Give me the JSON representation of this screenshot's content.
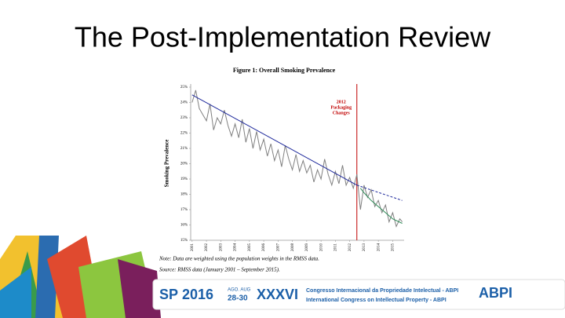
{
  "slide": {
    "title": "The Post-Implementation Review"
  },
  "chart_data": {
    "type": "line",
    "title": "Figure 1: Overall Smoking Prevalence",
    "y_label": "Smoking Prevalence",
    "xlim": [
      2000.9,
      2015.8
    ],
    "xticks": [
      2001,
      2002,
      2003,
      2004,
      2005,
      2006,
      2007,
      2008,
      2009,
      2010,
      2011,
      2012,
      2013,
      2014,
      2015
    ],
    "ylim": [
      15,
      25
    ],
    "yticks": [
      {
        "value": 15,
        "label": "15%"
      },
      {
        "value": 16,
        "label": "16%"
      },
      {
        "value": 17,
        "label": "17%"
      },
      {
        "value": 18,
        "label": "18%"
      },
      {
        "value": 19,
        "label": "19%"
      },
      {
        "value": 20,
        "label": "20%"
      },
      {
        "value": 21,
        "label": "21%"
      },
      {
        "value": 22,
        "label": "22%"
      },
      {
        "value": 23,
        "label": "23%"
      },
      {
        "value": 24,
        "label": "24%"
      },
      {
        "value": 25,
        "label": "25%"
      }
    ],
    "series": [
      {
        "color": "#808080",
        "style": "solid",
        "x": [
          2001.0,
          2001.25,
          2001.5,
          2001.75,
          2002.0,
          2002.25,
          2002.5,
          2002.75,
          2003.0,
          2003.25,
          2003.5,
          2003.75,
          2004.0,
          2004.25,
          2004.5,
          2004.75,
          2005.0,
          2005.25,
          2005.5,
          2005.75,
          2006.0,
          2006.25,
          2006.5,
          2006.75,
          2007.0,
          2007.25,
          2007.5,
          2007.75,
          2008.0,
          2008.25,
          2008.5,
          2008.75,
          2009.0,
          2009.25,
          2009.5,
          2009.75,
          2010.0,
          2010.25,
          2010.5,
          2010.75,
          2011.0,
          2011.25,
          2011.5,
          2011.75,
          2012.0,
          2012.25,
          2012.5,
          2012.75,
          2013.0,
          2013.25,
          2013.5,
          2013.75,
          2014.0,
          2014.25,
          2014.5,
          2014.75,
          2015.0,
          2015.25,
          2015.5,
          2015.67
        ],
        "values": [
          24.0,
          24.8,
          23.6,
          23.2,
          22.8,
          23.9,
          22.2,
          23.0,
          22.6,
          23.5,
          22.5,
          21.8,
          22.6,
          21.7,
          22.9,
          21.4,
          22.3,
          21.0,
          22.1,
          20.9,
          21.6,
          20.5,
          21.3,
          20.2,
          20.9,
          19.8,
          21.2,
          20.3,
          19.6,
          20.6,
          19.5,
          20.2,
          19.4,
          19.9,
          18.8,
          19.6,
          19.0,
          20.3,
          19.3,
          18.6,
          19.5,
          18.7,
          19.9,
          18.6,
          19.1,
          18.4,
          19.3,
          17.0,
          18.6,
          17.8,
          18.3,
          17.2,
          17.6,
          16.8,
          17.3,
          16.2,
          16.8,
          15.9,
          16.4,
          16.2
        ]
      },
      {
        "color": "#1f2a9c",
        "style": "solid",
        "x": [
          2001.0,
          2012.5
        ],
        "values": [
          24.5,
          18.6
        ]
      },
      {
        "color": "#1f2a9c",
        "style": "dashed",
        "x": [
          2012.5,
          2015.67
        ],
        "values": [
          18.6,
          17.6
        ]
      },
      {
        "color": "#2e8b57",
        "style": "solid",
        "x": [
          2012.75,
          2013.0,
          2013.5,
          2014.0,
          2014.5,
          2015.0,
          2015.67
        ],
        "values": [
          18.4,
          18.1,
          17.6,
          17.2,
          16.8,
          16.4,
          16.1
        ]
      }
    ],
    "annotation": {
      "lines": [
        "2012",
        "Packaging",
        "Changes"
      ],
      "x": 2012.5,
      "color": "#c00000"
    },
    "notes": [
      "Note: Data are weighted using the population weights in the RMSS data.",
      "Source: RMSS data (January 2001 – September 2015)."
    ]
  },
  "footer": {
    "city": "SP",
    "year": "2016",
    "dates_top": "AGO. AUG",
    "dates": "28-30",
    "edition": "XXXVI",
    "line1": "Congresso Internacional da Propriedade Intelectual - ABPI",
    "line2": "International Congress on Intellectual Property - ABPI",
    "logo": "ABPI"
  }
}
